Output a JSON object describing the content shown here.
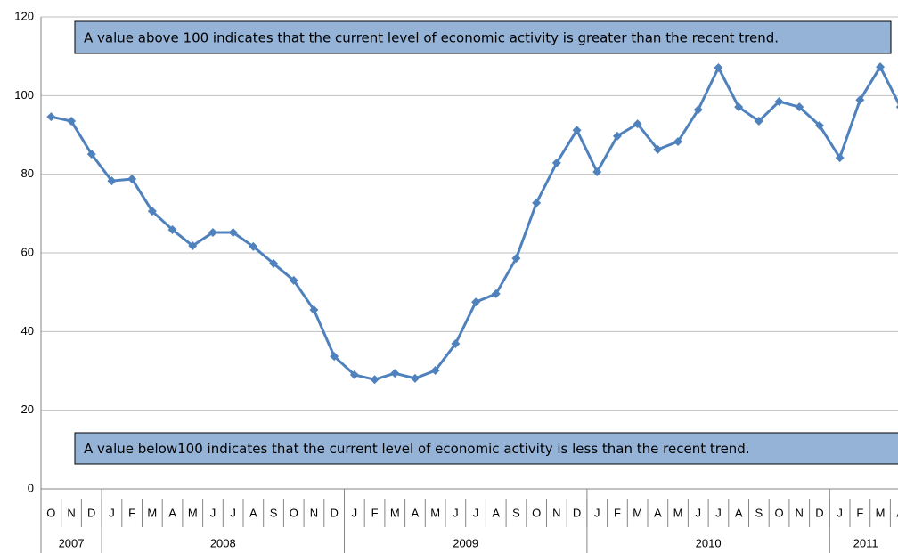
{
  "chart_data": {
    "type": "line",
    "categories": [
      "O",
      "N",
      "D",
      "J",
      "F",
      "M",
      "A",
      "M",
      "J",
      "J",
      "A",
      "S",
      "O",
      "N",
      "D",
      "J",
      "F",
      "M",
      "A",
      "M",
      "J",
      "J",
      "A",
      "S",
      "O",
      "N",
      "D",
      "J",
      "F",
      "M",
      "A",
      "M",
      "J",
      "J",
      "A",
      "S",
      "O",
      "N",
      "D",
      "J",
      "F",
      "M",
      "A"
    ],
    "x_groups": [
      {
        "label": "2007",
        "categories": 3
      },
      {
        "label": "2008",
        "categories": 12
      },
      {
        "label": "2009",
        "categories": 12
      },
      {
        "label": "2010",
        "categories": 12
      },
      {
        "label": "2011",
        "categories": 4
      }
    ],
    "series": [
      {
        "color": "#4f81bd",
        "values": [
          94.6,
          93.5,
          85.1,
          78.3,
          78.8,
          70.6,
          65.9,
          61.8,
          65.2,
          65.2,
          61.6,
          57.3,
          53.0,
          45.5,
          33.7,
          29.0,
          27.8,
          29.4,
          28.1,
          30.1,
          36.9,
          47.5,
          49.6,
          58.6,
          72.7,
          82.9,
          91.2,
          80.6,
          89.7,
          92.8,
          86.3,
          88.3,
          96.4,
          107.1,
          97.1,
          93.5,
          98.5,
          97.1,
          92.4,
          84.2,
          98.9,
          107.3,
          97.1
        ]
      }
    ],
    "ylim": [
      0,
      120
    ],
    "yticks": [
      0,
      20,
      40,
      60,
      80,
      100,
      120
    ],
    "grid": true,
    "annotations": [
      "A value above 100 indicates that the current level of economic activity is greater than the recent trend.",
      "A value below100 indicates that the current level of economic activity is less than the recent trend."
    ],
    "annotation_color": "#95b3d7"
  }
}
